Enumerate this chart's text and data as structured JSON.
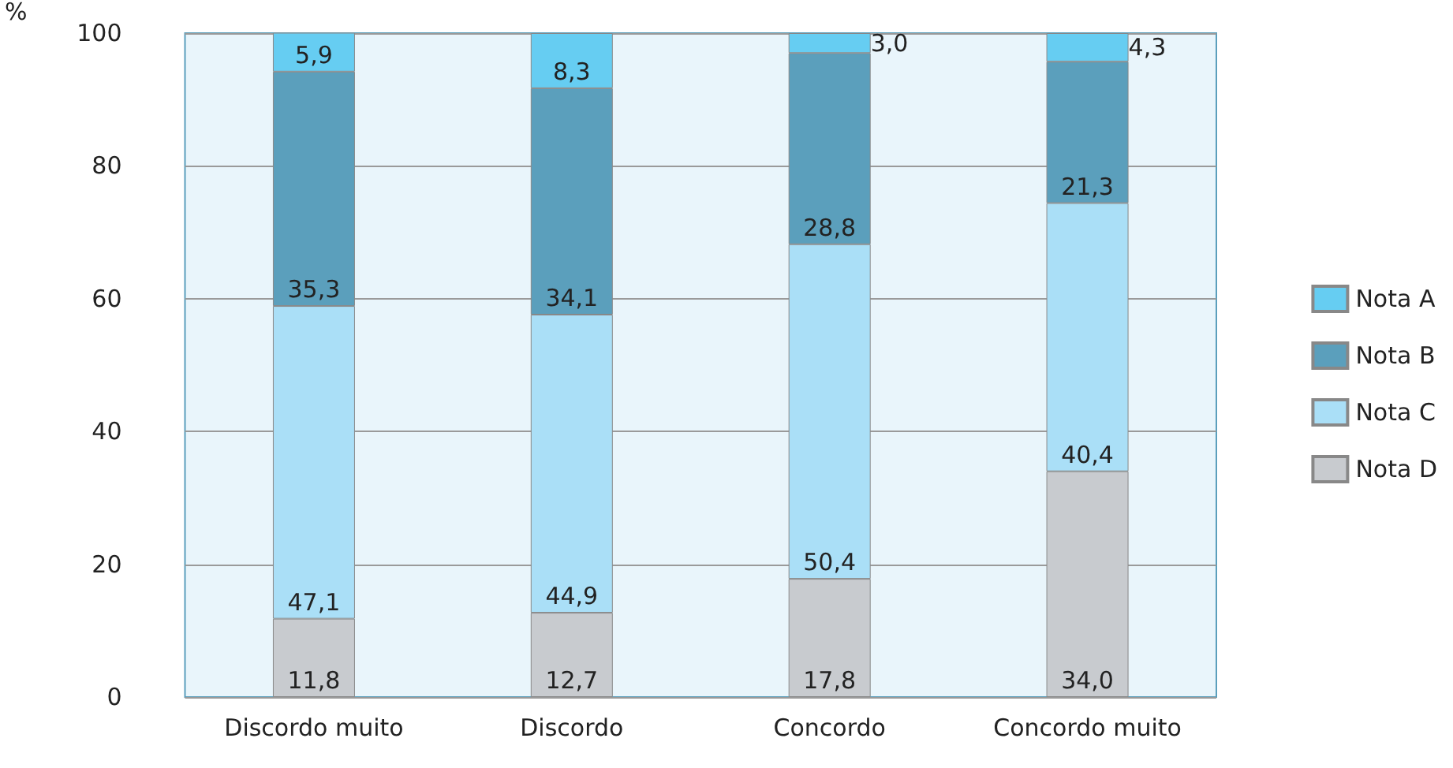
{
  "chart_data": {
    "type": "bar",
    "stacked": true,
    "ylabel": "%",
    "categories": [
      "Discordo muito",
      "Discordo",
      "Concordo",
      "Concordo muito"
    ],
    "series": [
      {
        "name": "Nota D",
        "color": "#c8cbcf",
        "values": [
          11.8,
          12.7,
          17.8,
          34.0
        ],
        "value_labels": [
          "11,8",
          "12,7",
          "17,8",
          "34,0"
        ]
      },
      {
        "name": "Nota C",
        "color": "#aadff7",
        "values": [
          47.1,
          44.9,
          50.4,
          40.4
        ],
        "value_labels": [
          "47,1",
          "44,9",
          "50,4",
          "40,4"
        ]
      },
      {
        "name": "Nota B",
        "color": "#5b9fbc",
        "values": [
          35.3,
          34.1,
          28.8,
          21.3
        ],
        "value_labels": [
          "35,3",
          "34,1",
          "28,8",
          "21,3"
        ]
      },
      {
        "name": "Nota A",
        "color": "#66cdf2",
        "values": [
          5.9,
          8.3,
          3.0,
          4.3
        ],
        "value_labels": [
          "5,9",
          "8,3",
          "3,0",
          "4,3"
        ]
      }
    ],
    "ylim": [
      0,
      100
    ],
    "yticks": [
      0,
      20,
      40,
      60,
      80,
      100
    ],
    "grid": "y",
    "legend": "right"
  }
}
